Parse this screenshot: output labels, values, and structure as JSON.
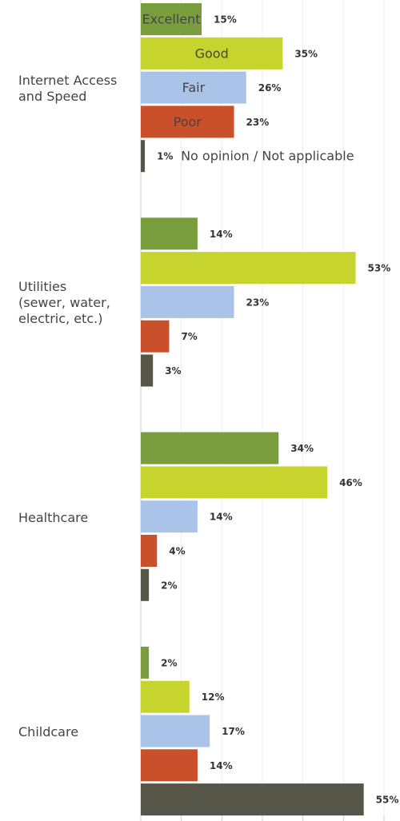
{
  "chart_data": {
    "type": "bar",
    "orientation": "horizontal",
    "categories": [
      "Internet Access\nand Speed",
      "Utilities\n(sewer, water,\nelectric, etc.)",
      "Healthcare",
      "Childcare"
    ],
    "series": [
      {
        "name": "Excellent",
        "color": "#7a9e3e",
        "values": [
          15,
          14,
          34,
          2
        ],
        "value_labels": [
          "15%",
          "14%",
          "34%",
          "2%"
        ]
      },
      {
        "name": "Good",
        "color": "#c8d42e",
        "values": [
          35,
          53,
          46,
          12
        ],
        "value_labels": [
          "35%",
          "53%",
          "46%",
          "12%"
        ]
      },
      {
        "name": "Fair",
        "color": "#a9c4e8",
        "values": [
          26,
          23,
          14,
          17
        ],
        "value_labels": [
          "26%",
          "23%",
          "14%",
          "17%"
        ]
      },
      {
        "name": "Poor",
        "color": "#c9502a",
        "values": [
          23,
          7,
          4,
          14
        ],
        "value_labels": [
          "23%",
          "7%",
          "4%",
          "14%"
        ]
      },
      {
        "name": "No opinion / Not applicable",
        "color": "#555548",
        "values": [
          1,
          3,
          2,
          55
        ],
        "value_labels": [
          "1%",
          "3%",
          "2%",
          "55%"
        ]
      }
    ],
    "xlim": [
      0,
      60
    ],
    "xticks": [
      0,
      10,
      20,
      30,
      40,
      50,
      60
    ],
    "grid": true
  }
}
